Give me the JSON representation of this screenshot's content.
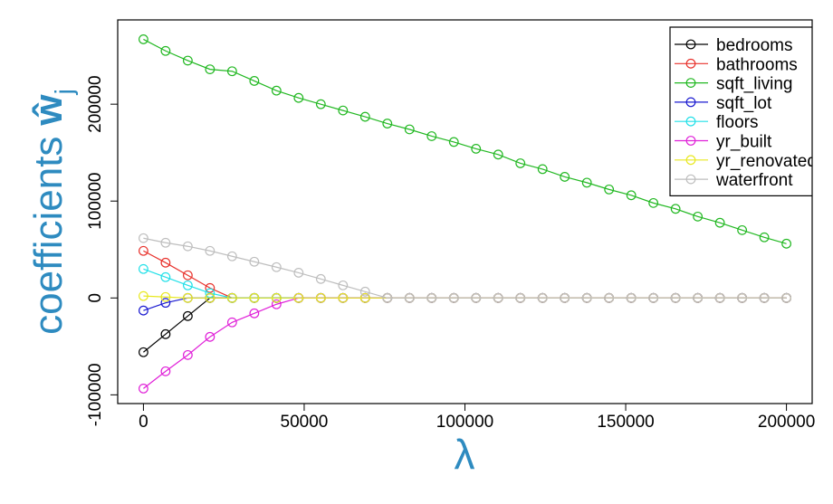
{
  "chart_data": {
    "type": "line",
    "xlabel": "λ",
    "ylabel": "coefficients",
    "ylabel_symbol": "ŵ",
    "ylabel_subscript": "j",
    "x": [
      0,
      6897,
      13793,
      20690,
      27586,
      34483,
      41379,
      48276,
      55172,
      62069,
      68966,
      75862,
      82759,
      89655,
      96552,
      103448,
      110345,
      117241,
      124138,
      131034,
      137931,
      144828,
      151724,
      158621,
      165517,
      172414,
      179310,
      186207,
      193103,
      200000
    ],
    "series": [
      {
        "name": "bedrooms",
        "color": "#000000",
        "values": [
          -56000,
          -37400,
          -18700,
          0,
          0,
          0,
          0,
          0,
          0,
          0,
          0,
          0,
          0,
          0,
          0,
          0,
          0,
          0,
          0,
          0,
          0,
          0,
          0,
          0,
          0,
          0,
          0,
          0,
          0,
          0
        ]
      },
      {
        "name": "bathrooms",
        "color": "#e8322c",
        "values": [
          48600,
          36400,
          23400,
          10300,
          0,
          0,
          0,
          0,
          0,
          0,
          0,
          0,
          0,
          0,
          0,
          0,
          0,
          0,
          0,
          0,
          0,
          0,
          0,
          0,
          0,
          0,
          0,
          0,
          0,
          0
        ]
      },
      {
        "name": "sqft_living",
        "color": "#22b822",
        "values": [
          267000,
          255000,
          245000,
          236000,
          234000,
          224000,
          214000,
          206500,
          200000,
          193500,
          187000,
          180000,
          174000,
          167000,
          161000,
          154000,
          148000,
          139000,
          133000,
          125000,
          119000,
          112000,
          106000,
          98000,
          92000,
          84000,
          77600,
          70000,
          62600,
          56000
        ]
      },
      {
        "name": "sqft_lot",
        "color": "#1a1ad0",
        "values": [
          -13000,
          -5000,
          0,
          0,
          0,
          0,
          0,
          0,
          0,
          0,
          0,
          0,
          0,
          0,
          0,
          0,
          0,
          0,
          0,
          0,
          0,
          0,
          0,
          0,
          0,
          0,
          0,
          0,
          0,
          0
        ]
      },
      {
        "name": "floors",
        "color": "#22e0e8",
        "values": [
          29900,
          21500,
          13000,
          5000,
          0,
          0,
          0,
          0,
          0,
          0,
          0,
          0,
          0,
          0,
          0,
          0,
          0,
          0,
          0,
          0,
          0,
          0,
          0,
          0,
          0,
          0,
          0,
          0,
          0,
          0
        ]
      },
      {
        "name": "yr_built",
        "color": "#e020d8",
        "values": [
          -93500,
          -75700,
          -58900,
          -40200,
          -25200,
          -15900,
          -6500,
          0,
          0,
          0,
          0,
          0,
          0,
          0,
          0,
          0,
          0,
          0,
          0,
          0,
          0,
          0,
          0,
          0,
          0,
          0,
          0,
          0,
          0,
          0
        ]
      },
      {
        "name": "yr_renovated",
        "color": "#e8e820",
        "values": [
          2000,
          1000,
          0,
          0,
          0,
          0,
          0,
          0,
          0,
          0,
          0,
          0,
          0,
          0,
          0,
          0,
          0,
          0,
          0,
          0,
          0,
          0,
          0,
          0,
          0,
          0,
          0,
          0,
          0,
          0
        ]
      },
      {
        "name": "waterfront",
        "color": "#bebebe",
        "values": [
          61700,
          57000,
          53300,
          48600,
          43000,
          37400,
          31800,
          26000,
          19600,
          13000,
          6500,
          0,
          0,
          0,
          0,
          0,
          0,
          0,
          0,
          0,
          0,
          0,
          0,
          0,
          0,
          0,
          0,
          0,
          0,
          0
        ]
      }
    ],
    "xlim": [
      -8000,
      208000
    ],
    "xticks": [
      0,
      50000,
      100000,
      150000,
      200000
    ],
    "ylim": [
      -109000,
      287000
    ],
    "yticks": [
      -100000,
      0,
      100000,
      200000
    ],
    "legend": "top-right",
    "label_color": "#2e8bc0"
  }
}
